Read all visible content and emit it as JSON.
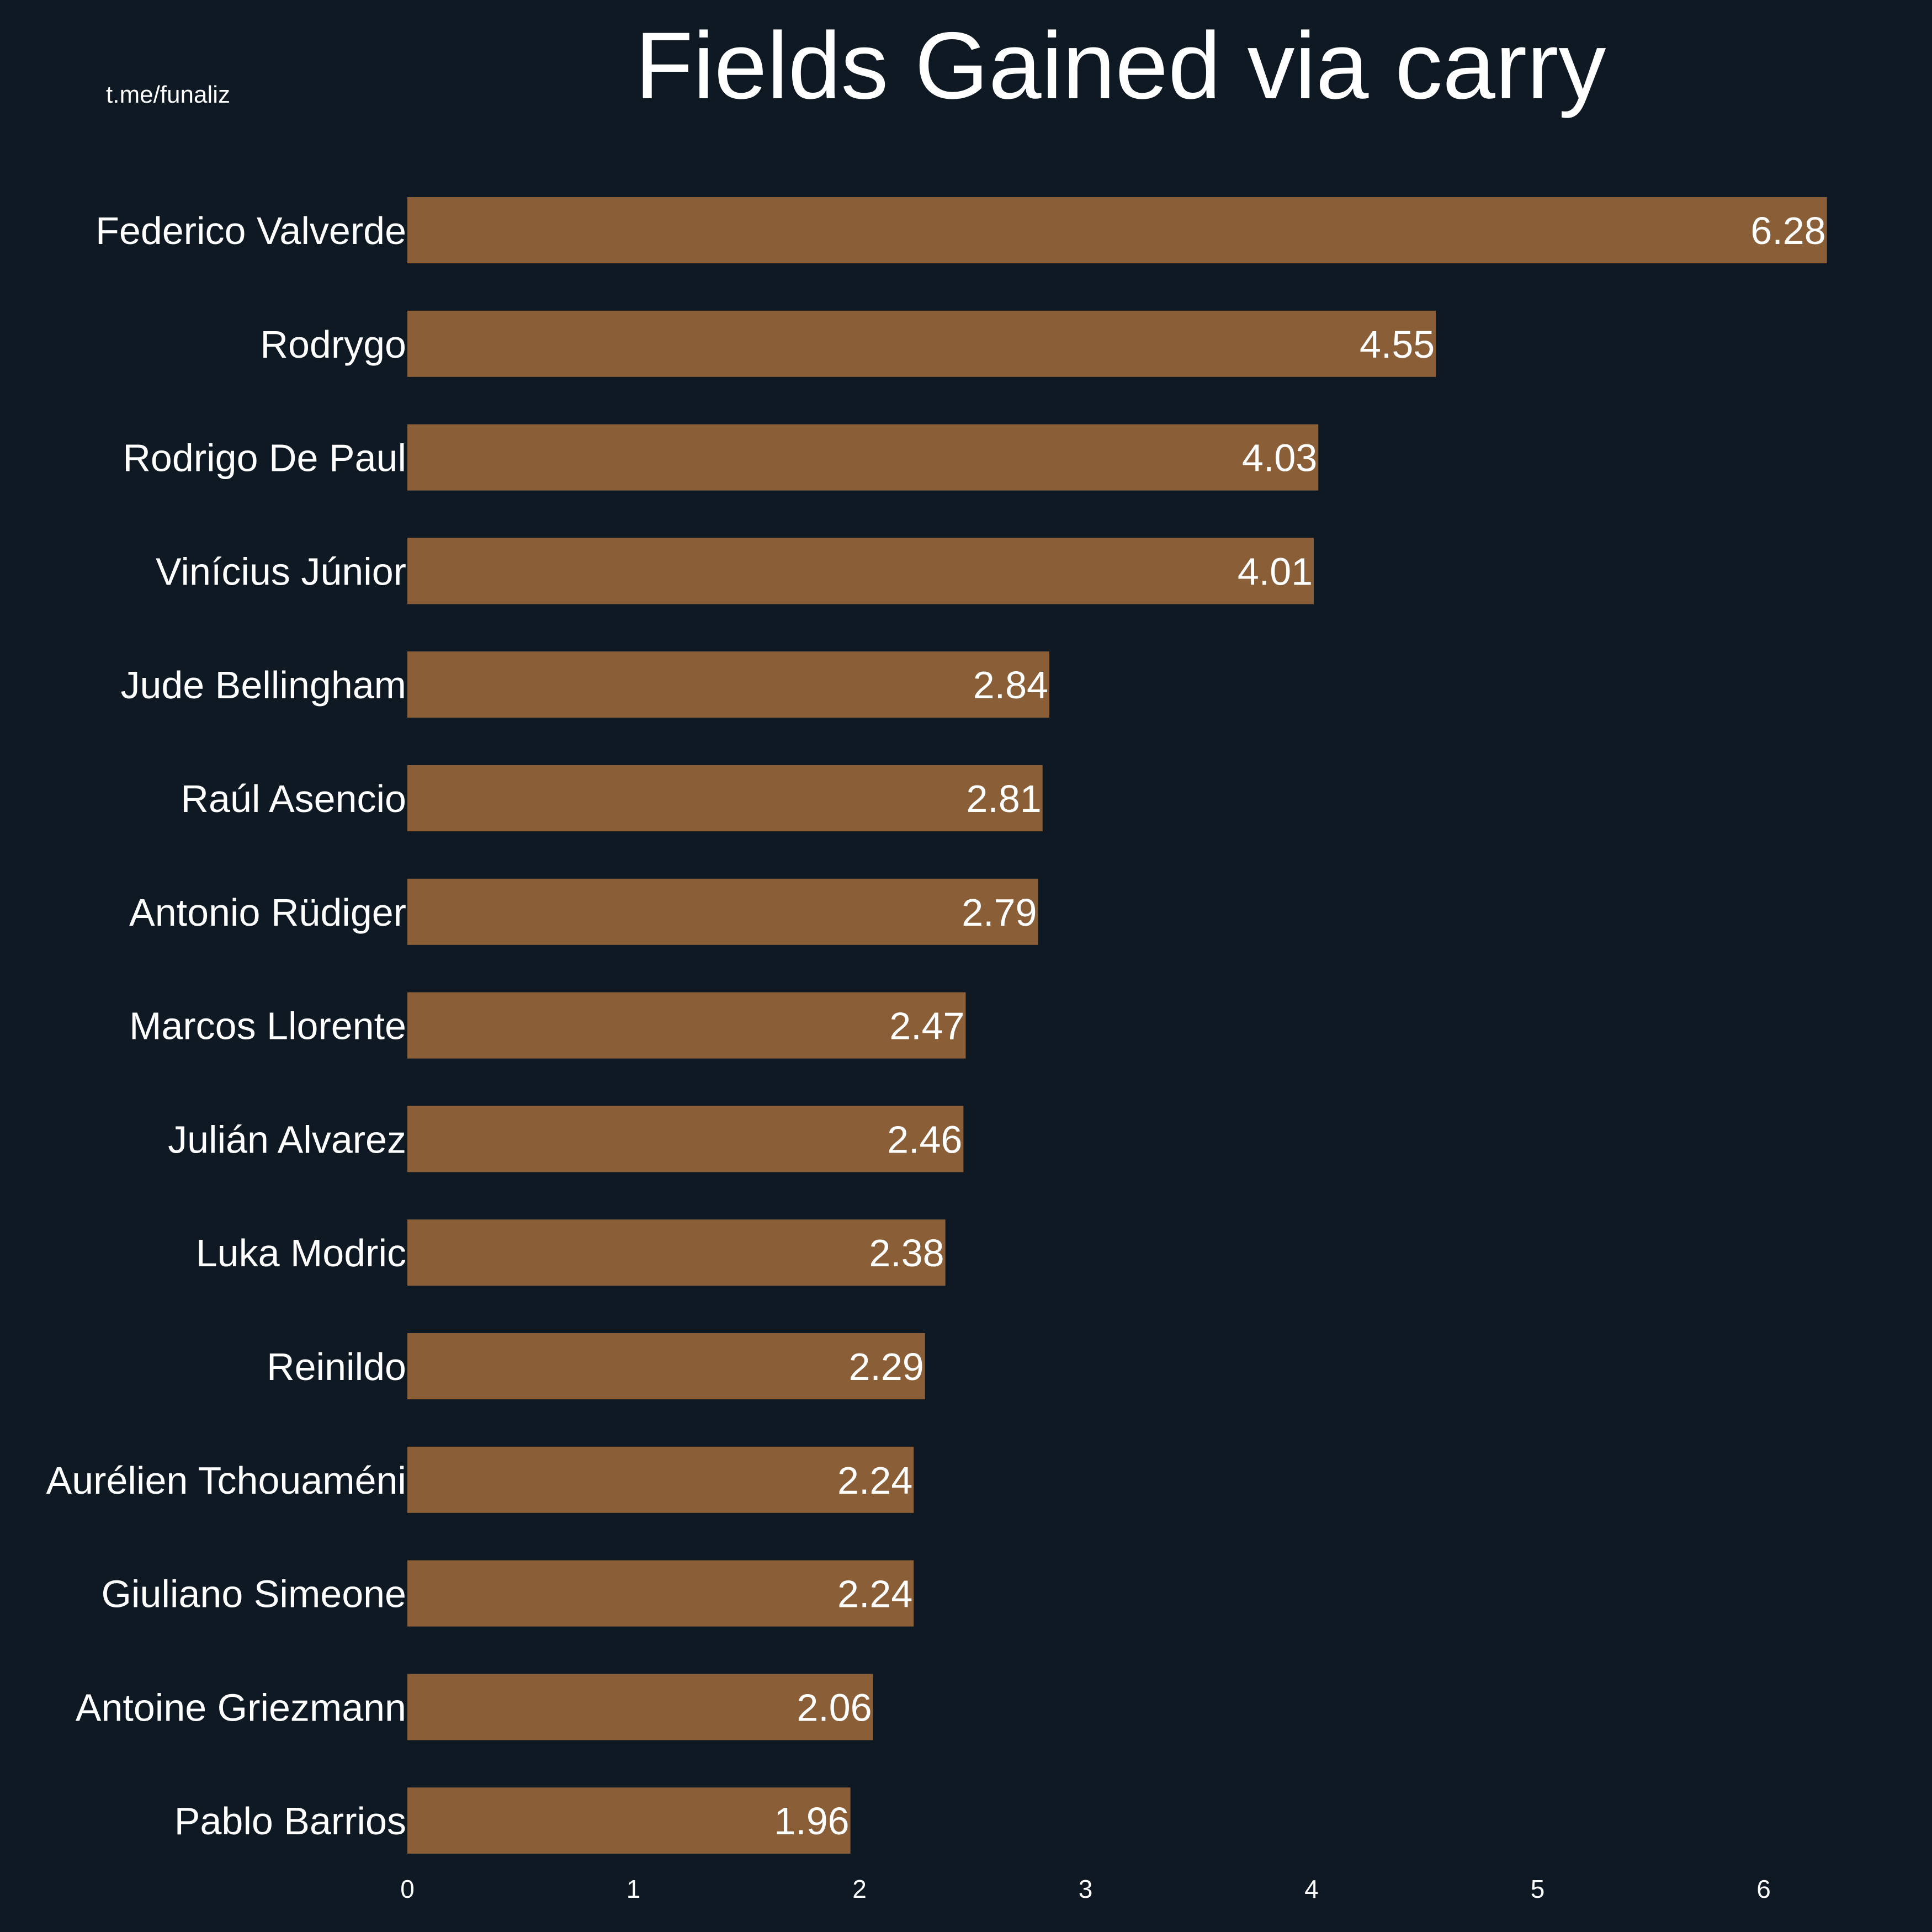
{
  "watermark": "t.me/funaliz",
  "colors": {
    "background": "#0f1923",
    "bar": "#8a5f38",
    "text": "#ffffff"
  },
  "chart_data": {
    "type": "bar",
    "orientation": "horizontal",
    "title": "Fields Gained via carry",
    "xlabel": "",
    "ylabel": "",
    "xlim": [
      0,
      6.28
    ],
    "grid": false,
    "x_ticks": [
      "0",
      "1",
      "2",
      "3",
      "4",
      "5",
      "6"
    ],
    "categories": [
      "Federico Valverde",
      "Rodrygo",
      "Rodrigo De Paul",
      "Vinícius Júnior",
      "Jude Bellingham",
      "Raúl Asencio",
      "Antonio Rüdiger",
      "Marcos Llorente",
      "Julián Alvarez",
      "Luka Modric",
      "Reinildo",
      "Aurélien Tchouaméni",
      "Giuliano Simeone",
      "Antoine Griezmann",
      "Pablo Barrios"
    ],
    "values": [
      6.28,
      4.55,
      4.03,
      4.01,
      2.84,
      2.81,
      2.79,
      2.47,
      2.46,
      2.38,
      2.29,
      2.24,
      2.24,
      2.06,
      1.96
    ],
    "value_labels": [
      "6.28",
      "4.55",
      "4.03",
      "4.01",
      "2.84",
      "2.81",
      "2.79",
      "2.47",
      "2.46",
      "2.38",
      "2.29",
      "2.24",
      "2.24",
      "2.06",
      "1.96"
    ]
  }
}
